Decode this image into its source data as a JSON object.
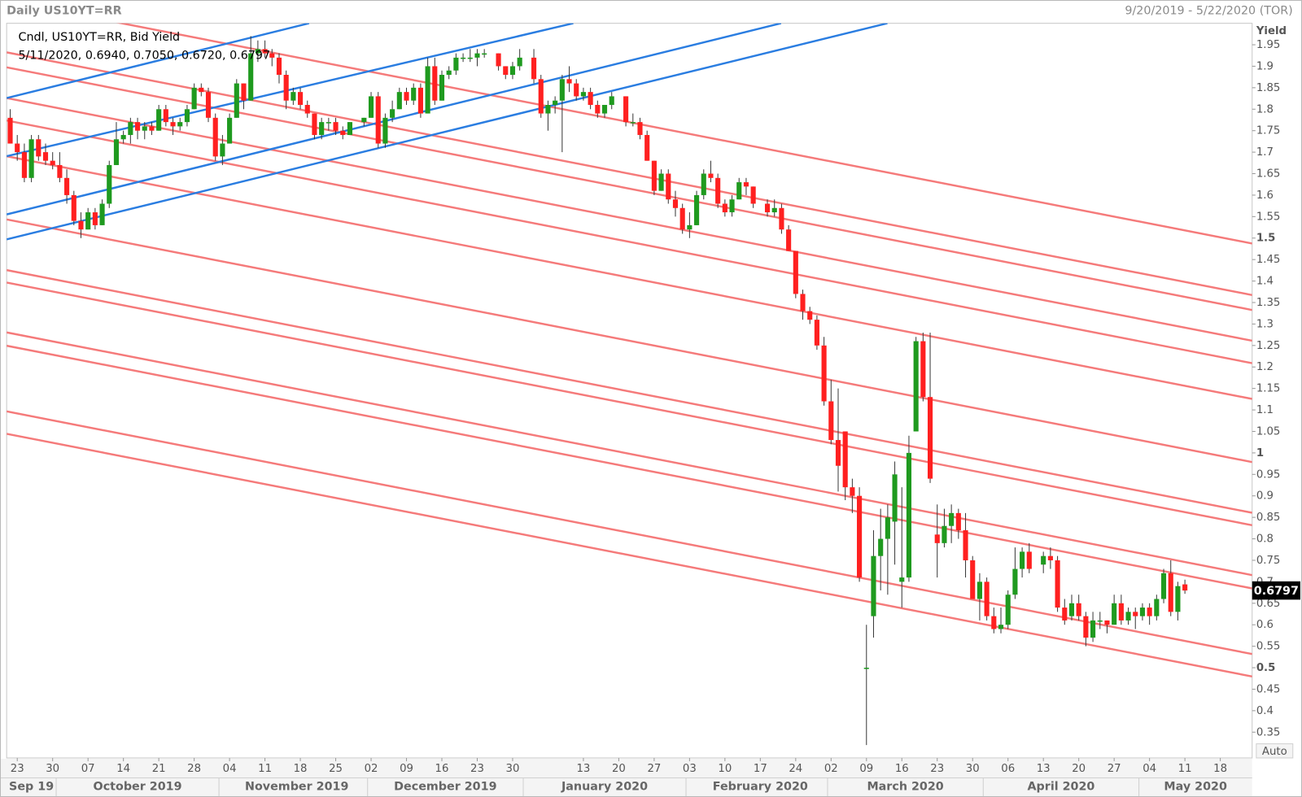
{
  "chart_data": {
    "type": "candlestick",
    "title": "Daily US10YT=RR",
    "date_range": "9/20/2019 - 5/22/2020 (TOR)",
    "legend_lines": [
      "Cndl, US10YT=RR, Bid Yield",
      "5/11/2020, 0.6940, 0.7050, 0.6720, 0.6797"
    ],
    "y_axis_label": "Yield",
    "auto_button": "Auto",
    "up_color": "#1f9a1f",
    "down_color": "#ff2020",
    "grid": false,
    "xlim": [
      "2019-09-20",
      "2020-05-22"
    ],
    "ylim": [
      0.29,
      2.0
    ],
    "yticks": [
      0.35,
      0.4,
      0.45,
      0.5,
      0.55,
      0.6,
      0.65,
      0.7,
      0.75,
      0.8,
      0.85,
      0.9,
      0.95,
      1,
      1.05,
      1.1,
      1.15,
      1.2,
      1.25,
      1.3,
      1.35,
      1.4,
      1.45,
      1.5,
      1.55,
      1.6,
      1.65,
      1.7,
      1.75,
      1.8,
      1.85,
      1.9,
      1.95
    ],
    "xticks": [
      {
        "value": "2019-09-23",
        "label": "23"
      },
      {
        "value": "2019-09-30",
        "label": "30"
      },
      {
        "value": "2019-10-07",
        "label": "07"
      },
      {
        "value": "2019-10-14",
        "label": "14"
      },
      {
        "value": "2019-10-21",
        "label": "21"
      },
      {
        "value": "2019-10-28",
        "label": "28"
      },
      {
        "value": "2019-11-04",
        "label": "04"
      },
      {
        "value": "2019-11-11",
        "label": "11"
      },
      {
        "value": "2019-11-18",
        "label": "18"
      },
      {
        "value": "2019-11-25",
        "label": "25"
      },
      {
        "value": "2019-12-02",
        "label": "02"
      },
      {
        "value": "2019-12-09",
        "label": "09"
      },
      {
        "value": "2019-12-16",
        "label": "16"
      },
      {
        "value": "2019-12-23",
        "label": "23"
      },
      {
        "value": "2019-12-30",
        "label": "30"
      },
      {
        "value": "2020-01-13",
        "label": "13"
      },
      {
        "value": "2020-01-20",
        "label": "20"
      },
      {
        "value": "2020-01-27",
        "label": "27"
      },
      {
        "value": "2020-02-03",
        "label": "03"
      },
      {
        "value": "2020-02-10",
        "label": "10"
      },
      {
        "value": "2020-02-17",
        "label": "17"
      },
      {
        "value": "2020-02-24",
        "label": "24"
      },
      {
        "value": "2020-03-02",
        "label": "02"
      },
      {
        "value": "2020-03-09",
        "label": "09"
      },
      {
        "value": "2020-03-16",
        "label": "16"
      },
      {
        "value": "2020-03-23",
        "label": "23"
      },
      {
        "value": "2020-03-30",
        "label": "30"
      },
      {
        "value": "2020-04-06",
        "label": "06"
      },
      {
        "value": "2020-04-13",
        "label": "13"
      },
      {
        "value": "2020-04-20",
        "label": "20"
      },
      {
        "value": "2020-04-27",
        "label": "27"
      },
      {
        "value": "2020-05-04",
        "label": "04"
      },
      {
        "value": "2020-05-11",
        "label": "11"
      },
      {
        "value": "2020-05-18",
        "label": "18"
      }
    ],
    "month_labels": [
      "Sep 19",
      "October 2019",
      "November 2019",
      "December 2019",
      "January 2020",
      "February 2020",
      "March 2020",
      "April 2020",
      "May 2020"
    ],
    "x": [
      "2019-09-20",
      "2019-09-23",
      "2019-09-24",
      "2019-09-25",
      "2019-09-26",
      "2019-09-27",
      "2019-09-30",
      "2019-10-01",
      "2019-10-02",
      "2019-10-03",
      "2019-10-04",
      "2019-10-07",
      "2019-10-08",
      "2019-10-09",
      "2019-10-10",
      "2019-10-11",
      "2019-10-14",
      "2019-10-15",
      "2019-10-16",
      "2019-10-17",
      "2019-10-18",
      "2019-10-21",
      "2019-10-22",
      "2019-10-23",
      "2019-10-24",
      "2019-10-25",
      "2019-10-28",
      "2019-10-29",
      "2019-10-30",
      "2019-10-31",
      "2019-11-01",
      "2019-11-04",
      "2019-11-05",
      "2019-11-06",
      "2019-11-07",
      "2019-11-08",
      "2019-11-11",
      "2019-11-12",
      "2019-11-13",
      "2019-11-14",
      "2019-11-15",
      "2019-11-18",
      "2019-11-19",
      "2019-11-20",
      "2019-11-21",
      "2019-11-22",
      "2019-11-25",
      "2019-11-26",
      "2019-11-27",
      "2019-11-29",
      "2019-12-02",
      "2019-12-03",
      "2019-12-04",
      "2019-12-05",
      "2019-12-06",
      "2019-12-09",
      "2019-12-10",
      "2019-12-11",
      "2019-12-12",
      "2019-12-13",
      "2019-12-16",
      "2019-12-17",
      "2019-12-18",
      "2019-12-19",
      "2019-12-20",
      "2019-12-23",
      "2019-12-24",
      "2019-12-26",
      "2019-12-27",
      "2019-12-30",
      "2019-12-31",
      "2020-01-02",
      "2020-01-03",
      "2020-01-06",
      "2020-01-07",
      "2020-01-08",
      "2020-01-09",
      "2020-01-10",
      "2020-01-13",
      "2020-01-14",
      "2020-01-15",
      "2020-01-16",
      "2020-01-17",
      "2020-01-21",
      "2020-01-22",
      "2020-01-23",
      "2020-01-24",
      "2020-01-27",
      "2020-01-28",
      "2020-01-29",
      "2020-01-30",
      "2020-01-31",
      "2020-02-03",
      "2020-02-04",
      "2020-02-05",
      "2020-02-06",
      "2020-02-07",
      "2020-02-10",
      "2020-02-11",
      "2020-02-12",
      "2020-02-13",
      "2020-02-14",
      "2020-02-18",
      "2020-02-19",
      "2020-02-20",
      "2020-02-21",
      "2020-02-24",
      "2020-02-25",
      "2020-02-26",
      "2020-02-27",
      "2020-02-28",
      "2020-03-02",
      "2020-03-03",
      "2020-03-04",
      "2020-03-05",
      "2020-03-06",
      "2020-03-09",
      "2020-03-10",
      "2020-03-11",
      "2020-03-12",
      "2020-03-13",
      "2020-03-16",
      "2020-03-17",
      "2020-03-18",
      "2020-03-19",
      "2020-03-20",
      "2020-03-23",
      "2020-03-24",
      "2020-03-25",
      "2020-03-26",
      "2020-03-27",
      "2020-03-30",
      "2020-03-31",
      "2020-04-01",
      "2020-04-02",
      "2020-04-03",
      "2020-04-06",
      "2020-04-07",
      "2020-04-08",
      "2020-04-09",
      "2020-04-13",
      "2020-04-14",
      "2020-04-15",
      "2020-04-16",
      "2020-04-17",
      "2020-04-20",
      "2020-04-21",
      "2020-04-22",
      "2020-04-23",
      "2020-04-24",
      "2020-04-27",
      "2020-04-28",
      "2020-04-29",
      "2020-04-30",
      "2020-05-01",
      "2020-05-04",
      "2020-05-05",
      "2020-05-06",
      "2020-05-07",
      "2020-05-08",
      "2020-05-11"
    ],
    "open": [
      1.78,
      1.72,
      1.7,
      1.64,
      1.73,
      1.7,
      1.68,
      1.67,
      1.64,
      1.6,
      1.54,
      1.52,
      1.56,
      1.53,
      1.58,
      1.67,
      1.73,
      1.74,
      1.77,
      1.75,
      1.76,
      1.75,
      1.8,
      1.77,
      1.76,
      1.77,
      1.8,
      1.85,
      1.84,
      1.78,
      1.69,
      1.72,
      1.78,
      1.86,
      1.82,
      1.93,
      1.94,
      1.93,
      1.92,
      1.88,
      1.82,
      1.84,
      1.81,
      1.79,
      1.74,
      1.77,
      1.77,
      1.75,
      1.74,
      1.77,
      1.78,
      1.83,
      1.72,
      1.78,
      1.8,
      1.84,
      1.82,
      1.85,
      1.79,
      1.9,
      1.82,
      1.88,
      1.89,
      1.92,
      1.92,
      1.92,
      1.93,
      1.93,
      1.9,
      1.88,
      1.9,
      1.92,
      1.87,
      1.79,
      1.81,
      1.82,
      1.87,
      1.86,
      1.83,
      1.84,
      1.81,
      1.79,
      1.81,
      1.83,
      1.77,
      1.77,
      1.74,
      1.68,
      1.61,
      1.65,
      1.59,
      1.57,
      1.52,
      1.53,
      1.6,
      1.65,
      1.64,
      1.58,
      1.56,
      1.59,
      1.63,
      1.62,
      1.58,
      1.56,
      1.57,
      1.52,
      1.47,
      1.37,
      1.33,
      1.31,
      1.25,
      1.12,
      1.03,
      1.05,
      0.92,
      0.9,
      0.5,
      0.62,
      0.76,
      0.8,
      0.84,
      0.7,
      0.71,
      1.05,
      1.26,
      1.13,
      0.81,
      0.79,
      0.83,
      0.86,
      0.82,
      0.75,
      0.66,
      0.7,
      0.62,
      0.59,
      0.6,
      0.67,
      0.73,
      0.77,
      0.74,
      0.76,
      0.75,
      0.64,
      0.62,
      0.65,
      0.62,
      0.57,
      0.61,
      0.61,
      0.6,
      0.65,
      0.61,
      0.63,
      0.62,
      0.64,
      0.62,
      0.66,
      0.72,
      0.63,
      0.694
    ],
    "high": [
      1.8,
      1.74,
      1.72,
      1.74,
      1.74,
      1.72,
      1.7,
      1.7,
      1.66,
      1.61,
      1.56,
      1.57,
      1.57,
      1.59,
      1.68,
      1.77,
      1.75,
      1.78,
      1.78,
      1.77,
      1.77,
      1.81,
      1.81,
      1.78,
      1.78,
      1.81,
      1.86,
      1.86,
      1.85,
      1.79,
      1.74,
      1.79,
      1.87,
      1.86,
      1.97,
      1.96,
      1.96,
      1.94,
      1.93,
      1.89,
      1.85,
      1.85,
      1.82,
      1.79,
      1.78,
      1.78,
      1.78,
      1.76,
      1.77,
      1.78,
      1.84,
      1.84,
      1.79,
      1.82,
      1.85,
      1.85,
      1.86,
      1.86,
      1.92,
      1.92,
      1.89,
      1.9,
      1.93,
      1.93,
      1.94,
      1.94,
      1.94,
      1.93,
      1.9,
      1.91,
      1.94,
      1.94,
      1.88,
      1.82,
      1.83,
      1.88,
      1.9,
      1.87,
      1.85,
      1.85,
      1.82,
      1.81,
      1.84,
      1.83,
      1.79,
      1.78,
      1.75,
      1.68,
      1.66,
      1.66,
      1.61,
      1.58,
      1.56,
      1.61,
      1.66,
      1.68,
      1.65,
      1.59,
      1.6,
      1.64,
      1.64,
      1.62,
      1.59,
      1.59,
      1.58,
      1.53,
      1.47,
      1.38,
      1.34,
      1.32,
      1.27,
      1.17,
      1.15,
      1.05,
      0.94,
      0.92,
      0.6,
      0.82,
      0.87,
      0.88,
      0.98,
      0.92,
      1.04,
      1.27,
      1.28,
      1.28,
      0.88,
      0.87,
      0.88,
      0.87,
      0.86,
      0.76,
      0.72,
      0.71,
      0.64,
      0.64,
      0.68,
      0.78,
      0.78,
      0.79,
      0.77,
      0.78,
      0.76,
      0.66,
      0.67,
      0.67,
      0.63,
      0.63,
      0.63,
      0.61,
      0.67,
      0.67,
      0.64,
      0.64,
      0.65,
      0.65,
      0.67,
      0.73,
      0.75,
      0.7,
      0.705
    ],
    "low": [
      1.72,
      1.68,
      1.63,
      1.63,
      1.68,
      1.67,
      1.66,
      1.63,
      1.58,
      1.53,
      1.5,
      1.52,
      1.52,
      1.53,
      1.57,
      1.67,
      1.72,
      1.72,
      1.73,
      1.73,
      1.74,
      1.75,
      1.76,
      1.74,
      1.75,
      1.76,
      1.8,
      1.83,
      1.77,
      1.68,
      1.67,
      1.72,
      1.78,
      1.8,
      1.82,
      1.91,
      1.92,
      1.9,
      1.86,
      1.8,
      1.81,
      1.8,
      1.78,
      1.73,
      1.73,
      1.75,
      1.74,
      1.73,
      1.74,
      1.76,
      1.78,
      1.71,
      1.71,
      1.77,
      1.8,
      1.81,
      1.81,
      1.78,
      1.79,
      1.81,
      1.82,
      1.87,
      1.88,
      1.91,
      1.91,
      1.9,
      1.92,
      1.89,
      1.87,
      1.87,
      1.89,
      1.86,
      1.78,
      1.75,
      1.79,
      1.7,
      1.84,
      1.82,
      1.82,
      1.8,
      1.78,
      1.78,
      1.8,
      1.76,
      1.76,
      1.73,
      1.68,
      1.6,
      1.61,
      1.58,
      1.55,
      1.51,
      1.5,
      1.53,
      1.59,
      1.63,
      1.57,
      1.55,
      1.55,
      1.59,
      1.6,
      1.57,
      1.55,
      1.55,
      1.51,
      1.47,
      1.36,
      1.31,
      1.3,
      1.24,
      1.11,
      1.02,
      0.91,
      0.89,
      0.86,
      0.7,
      0.32,
      0.57,
      0.68,
      0.67,
      0.74,
      0.64,
      0.7,
      1.05,
      1.12,
      0.93,
      0.71,
      0.78,
      0.79,
      0.8,
      0.71,
      0.66,
      0.61,
      0.61,
      0.58,
      0.58,
      0.59,
      0.66,
      0.71,
      0.72,
      0.72,
      0.73,
      0.63,
      0.6,
      0.61,
      0.61,
      0.55,
      0.56,
      0.59,
      0.58,
      0.6,
      0.6,
      0.6,
      0.59,
      0.61,
      0.6,
      0.61,
      0.65,
      0.62,
      0.61,
      0.672
    ],
    "close": [
      1.72,
      1.7,
      1.64,
      1.73,
      1.69,
      1.68,
      1.67,
      1.64,
      1.6,
      1.54,
      1.52,
      1.56,
      1.53,
      1.58,
      1.67,
      1.73,
      1.74,
      1.77,
      1.75,
      1.76,
      1.75,
      1.8,
      1.77,
      1.76,
      1.77,
      1.8,
      1.85,
      1.84,
      1.78,
      1.69,
      1.72,
      1.78,
      1.86,
      1.82,
      1.93,
      1.94,
      1.93,
      1.92,
      1.88,
      1.82,
      1.84,
      1.81,
      1.79,
      1.74,
      1.77,
      1.77,
      1.75,
      1.74,
      1.77,
      1.78,
      1.83,
      1.72,
      1.78,
      1.8,
      1.84,
      1.82,
      1.85,
      1.79,
      1.9,
      1.82,
      1.88,
      1.89,
      1.92,
      1.92,
      1.92,
      1.93,
      1.93,
      1.9,
      1.88,
      1.9,
      1.92,
      1.87,
      1.79,
      1.81,
      1.82,
      1.87,
      1.86,
      1.83,
      1.84,
      1.81,
      1.79,
      1.81,
      1.83,
      1.77,
      1.77,
      1.74,
      1.68,
      1.61,
      1.65,
      1.59,
      1.57,
      1.52,
      1.53,
      1.6,
      1.65,
      1.64,
      1.58,
      1.56,
      1.59,
      1.63,
      1.62,
      1.58,
      1.56,
      1.57,
      1.52,
      1.47,
      1.37,
      1.33,
      1.31,
      1.25,
      1.12,
      1.03,
      0.97,
      0.92,
      0.9,
      0.71,
      0.5,
      0.76,
      0.8,
      0.85,
      0.95,
      0.71,
      1.0,
      1.26,
      1.13,
      0.94,
      0.79,
      0.83,
      0.86,
      0.82,
      0.75,
      0.66,
      0.7,
      0.62,
      0.59,
      0.6,
      0.67,
      0.73,
      0.77,
      0.73,
      0.76,
      0.75,
      0.64,
      0.61,
      0.65,
      0.62,
      0.57,
      0.61,
      0.61,
      0.6,
      0.65,
      0.61,
      0.63,
      0.62,
      0.64,
      0.62,
      0.66,
      0.72,
      0.63,
      0.69,
      0.6797
    ]
  }
}
